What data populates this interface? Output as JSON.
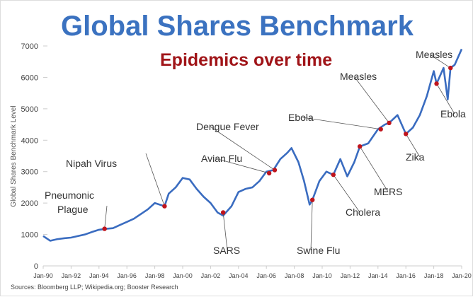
{
  "chart_data": {
    "type": "line",
    "title": "Global Shares Benchmark",
    "subtitle": "Epidemics over time",
    "ylabel": "Global Shares Benchmark Level",
    "xlabel": "",
    "ylim": [
      0,
      7000
    ],
    "xlim": [
      1990,
      2020
    ],
    "yticks": [
      "0",
      "1000",
      "2000",
      "3000",
      "4000",
      "5000",
      "6000",
      "7000"
    ],
    "xticks": [
      "Jan-90",
      "Jan-92",
      "Jan-94",
      "Jan-96",
      "Jan-98",
      "Jan-00",
      "Jan-02",
      "Jan-04",
      "Jan-06",
      "Jan-08",
      "Jan-10",
      "Jan-12",
      "Jan-14",
      "Jan-16",
      "Jan-18",
      "Jan-20"
    ],
    "grid": false,
    "series": [
      {
        "name": "Global Shares Benchmark Level",
        "color": "#3a6cc0",
        "x": [
          1990,
          1990.5,
          1991,
          1991.5,
          1992,
          1992.5,
          1993,
          1993.5,
          1994,
          1994.5,
          1995,
          1995.5,
          1996,
          1996.5,
          1997,
          1997.5,
          1998,
          1998.7,
          1999,
          1999.5,
          2000,
          2000.5,
          2001,
          2001.5,
          2002,
          2002.5,
          2002.9,
          2003.5,
          2004,
          2004.5,
          2005,
          2005.5,
          2006,
          2006.5,
          2007,
          2007.5,
          2007.8,
          2008.3,
          2008.7,
          2009.1,
          2009.3,
          2009.8,
          2010.3,
          2010.8,
          2011.3,
          2011.8,
          2012.3,
          2012.7,
          2013.3,
          2014,
          2014.5,
          2014.8,
          2015.4,
          2016,
          2016.5,
          2017,
          2017.5,
          2018,
          2018.2,
          2018.7,
          2019,
          2019.2,
          2019.5,
          2020
        ],
        "y": [
          950,
          800,
          850,
          880,
          900,
          950,
          1000,
          1080,
          1150,
          1180,
          1200,
          1300,
          1400,
          1500,
          1650,
          1800,
          2000,
          1900,
          2300,
          2500,
          2800,
          2750,
          2450,
          2200,
          2000,
          1700,
          1600,
          1900,
          2350,
          2450,
          2500,
          2700,
          3000,
          3050,
          3400,
          3600,
          3750,
          3300,
          2700,
          1950,
          2100,
          2700,
          3000,
          2900,
          3400,
          2850,
          3300,
          3800,
          3900,
          4350,
          4500,
          4550,
          4800,
          4200,
          4400,
          4800,
          5400,
          6200,
          5800,
          6300,
          5300,
          6300,
          6400,
          6900
        ]
      }
    ],
    "annotations": [
      {
        "label": "Pneumonic Plague",
        "x": 1994.4,
        "y": 1180
      },
      {
        "label": "Nipah Virus",
        "x": 1998.7,
        "y": 1900
      },
      {
        "label": "SARS",
        "x": 2002.9,
        "y": 1700
      },
      {
        "label": "Avian Flu",
        "x": 2006.2,
        "y": 2950
      },
      {
        "label": "Dengue Fever",
        "x": 2006.6,
        "y": 3050
      },
      {
        "label": "Swine Flu",
        "x": 2009.3,
        "y": 2100
      },
      {
        "label": "Cholera",
        "x": 2010.8,
        "y": 2900
      },
      {
        "label": "MERS",
        "x": 2012.7,
        "y": 3800
      },
      {
        "label": "Ebola",
        "x": 2014.2,
        "y": 4350
      },
      {
        "label": "Measles",
        "x": 2014.8,
        "y": 4550
      },
      {
        "label": "Zika",
        "x": 2016,
        "y": 4200
      },
      {
        "label": "Ebola",
        "x": 2018.2,
        "y": 5800
      },
      {
        "label": "Measles",
        "x": 2019.2,
        "y": 6300
      }
    ],
    "marker_color": "#c0141c",
    "source": "Sources: Bloomberg LLP; Wikipedia.org; Booster Research"
  }
}
